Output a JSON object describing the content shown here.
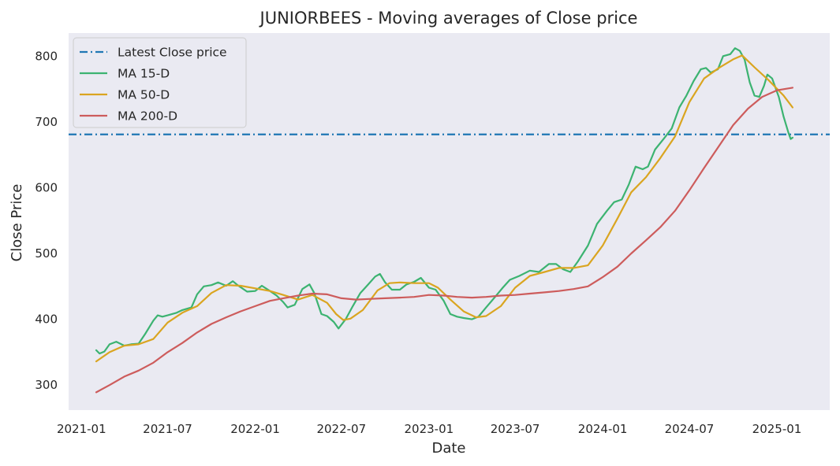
{
  "chart_data": {
    "type": "line",
    "title": "JUNIORBEES - Moving averages of Close price",
    "xlabel": "Date",
    "ylabel": "Close Price",
    "xlim": [
      "2020-12-05",
      "2025-04-22"
    ],
    "ylim": [
      262,
      835
    ],
    "x_ticks": [
      "2021-01",
      "2021-07",
      "2022-01",
      "2022-07",
      "2023-01",
      "2023-07",
      "2024-01",
      "2024-07",
      "2025-01"
    ],
    "y_ticks": [
      300,
      400,
      500,
      600,
      700,
      800
    ],
    "grid": false,
    "legend_position": "top-left",
    "background_color": "#eaeaf2",
    "hline": {
      "name": "Latest Close price",
      "value": 681,
      "color": "#1f77b4",
      "style": "dashdot"
    },
    "series": [
      {
        "name": "MA 15-D",
        "color": "#3cb371",
        "points": [
          [
            "2021-02-01",
            353
          ],
          [
            "2021-02-08",
            348
          ],
          [
            "2021-02-18",
            351
          ],
          [
            "2021-03-01",
            362
          ],
          [
            "2021-03-15",
            366
          ],
          [
            "2021-04-01",
            360
          ],
          [
            "2021-04-15",
            362
          ],
          [
            "2021-05-01",
            363
          ],
          [
            "2021-05-15",
            378
          ],
          [
            "2021-06-01",
            398
          ],
          [
            "2021-06-10",
            406
          ],
          [
            "2021-06-20",
            404
          ],
          [
            "2021-07-01",
            406
          ],
          [
            "2021-07-20",
            410
          ],
          [
            "2021-08-01",
            414
          ],
          [
            "2021-08-20",
            418
          ],
          [
            "2021-09-01",
            438
          ],
          [
            "2021-09-15",
            450
          ],
          [
            "2021-10-01",
            452
          ],
          [
            "2021-10-15",
            456
          ],
          [
            "2021-11-01",
            451
          ],
          [
            "2021-11-15",
            458
          ],
          [
            "2021-11-25",
            452
          ],
          [
            "2021-12-15",
            442
          ],
          [
            "2022-01-01",
            443
          ],
          [
            "2022-01-15",
            451
          ],
          [
            "2022-02-01",
            443
          ],
          [
            "2022-02-15",
            436
          ],
          [
            "2022-03-01",
            426
          ],
          [
            "2022-03-10",
            418
          ],
          [
            "2022-03-25",
            422
          ],
          [
            "2022-04-10",
            446
          ],
          [
            "2022-04-25",
            453
          ],
          [
            "2022-05-05",
            440
          ],
          [
            "2022-05-20",
            408
          ],
          [
            "2022-06-01",
            405
          ],
          [
            "2022-06-15",
            396
          ],
          [
            "2022-06-25",
            386
          ],
          [
            "2022-07-10",
            400
          ],
          [
            "2022-07-25",
            420
          ],
          [
            "2022-08-10",
            440
          ],
          [
            "2022-08-25",
            452
          ],
          [
            "2022-09-10",
            465
          ],
          [
            "2022-09-20",
            469
          ],
          [
            "2022-10-01",
            456
          ],
          [
            "2022-10-15",
            445
          ],
          [
            "2022-11-01",
            445
          ],
          [
            "2022-11-15",
            453
          ],
          [
            "2022-12-01",
            457
          ],
          [
            "2022-12-15",
            463
          ],
          [
            "2023-01-01",
            448
          ],
          [
            "2023-01-15",
            445
          ],
          [
            "2023-02-01",
            428
          ],
          [
            "2023-02-15",
            408
          ],
          [
            "2023-03-01",
            404
          ],
          [
            "2023-03-15",
            402
          ],
          [
            "2023-04-01",
            400
          ],
          [
            "2023-04-15",
            404
          ],
          [
            "2023-05-01",
            418
          ],
          [
            "2023-05-20",
            434
          ],
          [
            "2023-06-05",
            448
          ],
          [
            "2023-06-20",
            460
          ],
          [
            "2023-07-10",
            466
          ],
          [
            "2023-08-01",
            474
          ],
          [
            "2023-08-20",
            472
          ],
          [
            "2023-09-10",
            484
          ],
          [
            "2023-09-25",
            484
          ],
          [
            "2023-10-10",
            476
          ],
          [
            "2023-10-25",
            472
          ],
          [
            "2023-11-10",
            488
          ],
          [
            "2023-12-01",
            512
          ],
          [
            "2023-12-20",
            545
          ],
          [
            "2024-01-10",
            565
          ],
          [
            "2024-01-25",
            578
          ],
          [
            "2024-02-10",
            582
          ],
          [
            "2024-02-25",
            605
          ],
          [
            "2024-03-10",
            632
          ],
          [
            "2024-03-25",
            628
          ],
          [
            "2024-04-05",
            632
          ],
          [
            "2024-04-20",
            658
          ],
          [
            "2024-05-10",
            676
          ],
          [
            "2024-05-25",
            690
          ],
          [
            "2024-06-10",
            722
          ],
          [
            "2024-06-25",
            740
          ],
          [
            "2024-07-10",
            762
          ],
          [
            "2024-07-25",
            780
          ],
          [
            "2024-08-05",
            782
          ],
          [
            "2024-08-15",
            775
          ],
          [
            "2024-08-30",
            780
          ],
          [
            "2024-09-10",
            800
          ],
          [
            "2024-09-25",
            803
          ],
          [
            "2024-10-05",
            812
          ],
          [
            "2024-10-15",
            808
          ],
          [
            "2024-10-25",
            795
          ],
          [
            "2024-11-05",
            760
          ],
          [
            "2024-11-15",
            740
          ],
          [
            "2024-11-25",
            738
          ],
          [
            "2024-12-05",
            755
          ],
          [
            "2024-12-12",
            772
          ],
          [
            "2024-12-22",
            766
          ],
          [
            "2025-01-05",
            738
          ],
          [
            "2025-01-15",
            708
          ],
          [
            "2025-01-25",
            684
          ],
          [
            "2025-01-30",
            674
          ],
          [
            "2025-02-03",
            676
          ]
        ]
      },
      {
        "name": "MA 50-D",
        "color": "#daa520",
        "points": [
          [
            "2021-02-01",
            336
          ],
          [
            "2021-03-01",
            350
          ],
          [
            "2021-04-01",
            360
          ],
          [
            "2021-05-01",
            362
          ],
          [
            "2021-06-01",
            370
          ],
          [
            "2021-07-01",
            395
          ],
          [
            "2021-08-01",
            410
          ],
          [
            "2021-09-01",
            420
          ],
          [
            "2021-10-01",
            440
          ],
          [
            "2021-11-01",
            452
          ],
          [
            "2021-12-01",
            451
          ],
          [
            "2022-01-01",
            447
          ],
          [
            "2022-02-01",
            443
          ],
          [
            "2022-03-01",
            437
          ],
          [
            "2022-04-01",
            430
          ],
          [
            "2022-05-01",
            437
          ],
          [
            "2022-06-01",
            425
          ],
          [
            "2022-06-20",
            408
          ],
          [
            "2022-07-05",
            399
          ],
          [
            "2022-07-20",
            401
          ],
          [
            "2022-08-15",
            414
          ],
          [
            "2022-09-15",
            444
          ],
          [
            "2022-10-10",
            455
          ],
          [
            "2022-11-01",
            456
          ],
          [
            "2022-12-01",
            455
          ],
          [
            "2023-01-01",
            455
          ],
          [
            "2023-01-20",
            448
          ],
          [
            "2023-02-15",
            430
          ],
          [
            "2023-03-15",
            412
          ],
          [
            "2023-04-10",
            403
          ],
          [
            "2023-05-01",
            405
          ],
          [
            "2023-06-01",
            420
          ],
          [
            "2023-07-01",
            448
          ],
          [
            "2023-08-01",
            466
          ],
          [
            "2023-09-01",
            472
          ],
          [
            "2023-10-01",
            478
          ],
          [
            "2023-11-01",
            478
          ],
          [
            "2023-12-01",
            482
          ],
          [
            "2024-01-01",
            512
          ],
          [
            "2024-02-01",
            553
          ],
          [
            "2024-03-01",
            593
          ],
          [
            "2024-04-01",
            616
          ],
          [
            "2024-05-01",
            645
          ],
          [
            "2024-06-01",
            678
          ],
          [
            "2024-07-01",
            730
          ],
          [
            "2024-08-01",
            766
          ],
          [
            "2024-09-01",
            782
          ],
          [
            "2024-10-01",
            795
          ],
          [
            "2024-10-20",
            801
          ],
          [
            "2024-11-15",
            783
          ],
          [
            "2024-12-15",
            763
          ],
          [
            "2025-01-15",
            740
          ],
          [
            "2025-02-03",
            722
          ]
        ]
      },
      {
        "name": "MA 200-D",
        "color": "#cd5c5c",
        "points": [
          [
            "2021-02-01",
            289
          ],
          [
            "2021-03-01",
            300
          ],
          [
            "2021-04-01",
            313
          ],
          [
            "2021-05-01",
            322
          ],
          [
            "2021-06-01",
            334
          ],
          [
            "2021-07-01",
            350
          ],
          [
            "2021-08-01",
            364
          ],
          [
            "2021-09-01",
            380
          ],
          [
            "2021-10-01",
            393
          ],
          [
            "2021-11-01",
            403
          ],
          [
            "2021-12-01",
            412
          ],
          [
            "2022-01-01",
            420
          ],
          [
            "2022-02-01",
            428
          ],
          [
            "2022-03-01",
            432
          ],
          [
            "2022-04-01",
            436
          ],
          [
            "2022-05-01",
            439
          ],
          [
            "2022-06-01",
            438
          ],
          [
            "2022-07-01",
            432
          ],
          [
            "2022-08-01",
            430
          ],
          [
            "2022-09-01",
            431
          ],
          [
            "2022-10-01",
            432
          ],
          [
            "2022-11-01",
            433
          ],
          [
            "2022-12-01",
            434
          ],
          [
            "2023-01-01",
            437
          ],
          [
            "2023-02-01",
            436
          ],
          [
            "2023-03-01",
            434
          ],
          [
            "2023-04-01",
            433
          ],
          [
            "2023-05-01",
            434
          ],
          [
            "2023-06-01",
            436
          ],
          [
            "2023-07-01",
            437
          ],
          [
            "2023-08-01",
            439
          ],
          [
            "2023-09-01",
            441
          ],
          [
            "2023-10-01",
            443
          ],
          [
            "2023-11-01",
            446
          ],
          [
            "2023-12-01",
            450
          ],
          [
            "2024-01-01",
            464
          ],
          [
            "2024-02-01",
            480
          ],
          [
            "2024-03-01",
            500
          ],
          [
            "2024-04-01",
            520
          ],
          [
            "2024-05-01",
            540
          ],
          [
            "2024-06-01",
            565
          ],
          [
            "2024-07-01",
            596
          ],
          [
            "2024-08-01",
            630
          ],
          [
            "2024-09-01",
            663
          ],
          [
            "2024-10-01",
            695
          ],
          [
            "2024-11-01",
            720
          ],
          [
            "2024-12-01",
            738
          ],
          [
            "2025-01-01",
            748
          ],
          [
            "2025-02-03",
            752
          ]
        ]
      }
    ]
  }
}
